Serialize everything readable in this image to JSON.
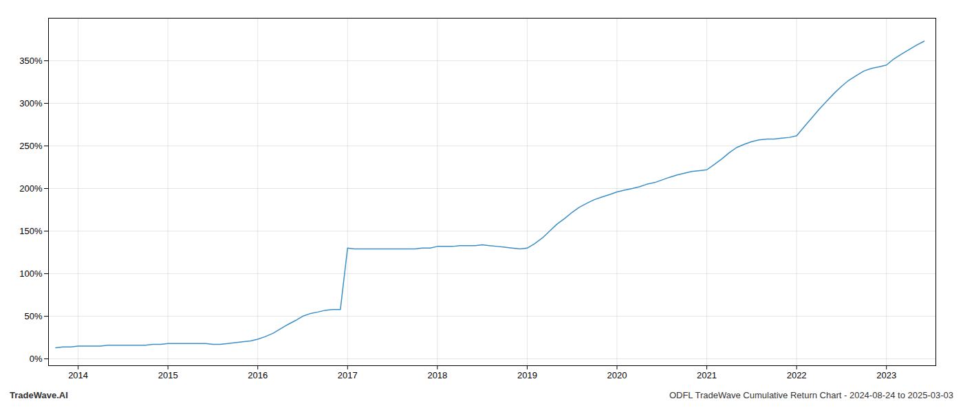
{
  "chart_data": {
    "type": "line",
    "title": "ODFL TradeWave Cumulative Return Chart - 2024-08-24 to 2025-03-03",
    "annotations": [
      "TradeWave.AI"
    ],
    "color": "#3a8fc7",
    "grid": true,
    "x": [
      2013.75,
      2013.83,
      2013.92,
      2014.0,
      2014.08,
      2014.17,
      2014.25,
      2014.33,
      2014.42,
      2014.5,
      2014.58,
      2014.67,
      2014.75,
      2014.83,
      2014.92,
      2015.0,
      2015.08,
      2015.17,
      2015.25,
      2015.33,
      2015.42,
      2015.5,
      2015.58,
      2015.67,
      2015.75,
      2015.83,
      2015.92,
      2016.0,
      2016.08,
      2016.17,
      2016.25,
      2016.33,
      2016.42,
      2016.5,
      2016.58,
      2016.67,
      2016.75,
      2016.83,
      2016.92,
      2017.0,
      2017.08,
      2017.17,
      2017.25,
      2017.33,
      2017.42,
      2017.5,
      2017.58,
      2017.67,
      2017.75,
      2017.83,
      2017.92,
      2018.0,
      2018.08,
      2018.17,
      2018.25,
      2018.33,
      2018.42,
      2018.5,
      2018.58,
      2018.67,
      2018.75,
      2018.83,
      2018.92,
      2019.0,
      2019.08,
      2019.17,
      2019.25,
      2019.33,
      2019.42,
      2019.5,
      2019.58,
      2019.67,
      2019.75,
      2019.83,
      2019.92,
      2020.0,
      2020.08,
      2020.17,
      2020.25,
      2020.33,
      2020.42,
      2020.5,
      2020.58,
      2020.67,
      2020.75,
      2020.83,
      2020.92,
      2021.0,
      2021.08,
      2021.17,
      2021.25,
      2021.33,
      2021.42,
      2021.5,
      2021.58,
      2021.67,
      2021.75,
      2021.83,
      2021.92,
      2022.0,
      2022.08,
      2022.17,
      2022.25,
      2022.33,
      2022.42,
      2022.5,
      2022.58,
      2022.67,
      2022.75,
      2022.83,
      2022.92,
      2023.0,
      2023.08,
      2023.17,
      2023.25,
      2023.33,
      2023.42
    ],
    "values": [
      13,
      14,
      14,
      15,
      15,
      15,
      15,
      16,
      16,
      16,
      16,
      16,
      16,
      17,
      17,
      18,
      18,
      18,
      18,
      18,
      18,
      17,
      17,
      18,
      19,
      20,
      21,
      23,
      26,
      30,
      35,
      40,
      45,
      50,
      53,
      55,
      57,
      58,
      58,
      130,
      129,
      129,
      129,
      129,
      129,
      129,
      129,
      129,
      129,
      130,
      130,
      132,
      132,
      132,
      133,
      133,
      133,
      134,
      133,
      132,
      131,
      130,
      129,
      130,
      135,
      142,
      150,
      158,
      165,
      172,
      178,
      183,
      187,
      190,
      193,
      196,
      198,
      200,
      202,
      205,
      207,
      210,
      213,
      216,
      218,
      220,
      221,
      222,
      228,
      235,
      242,
      248,
      252,
      255,
      257,
      258,
      258,
      259,
      260,
      262,
      272,
      283,
      293,
      302,
      312,
      320,
      327,
      333,
      338,
      341,
      343,
      345,
      352,
      358,
      363,
      368,
      373
    ],
    "xlim": [
      2013.67,
      2023.55
    ],
    "xticks": [
      2014,
      2015,
      2016,
      2017,
      2018,
      2019,
      2020,
      2021,
      2022,
      2023
    ],
    "ylim": [
      -8,
      400
    ],
    "yticks": [
      {
        "value": 0,
        "label": "0%"
      },
      {
        "value": 50,
        "label": "50%"
      },
      {
        "value": 100,
        "label": "100%"
      },
      {
        "value": 150,
        "label": "150%"
      },
      {
        "value": 200,
        "label": "200%"
      },
      {
        "value": 250,
        "label": "250%"
      },
      {
        "value": 300,
        "label": "300%"
      },
      {
        "value": 350,
        "label": "350%"
      }
    ]
  }
}
